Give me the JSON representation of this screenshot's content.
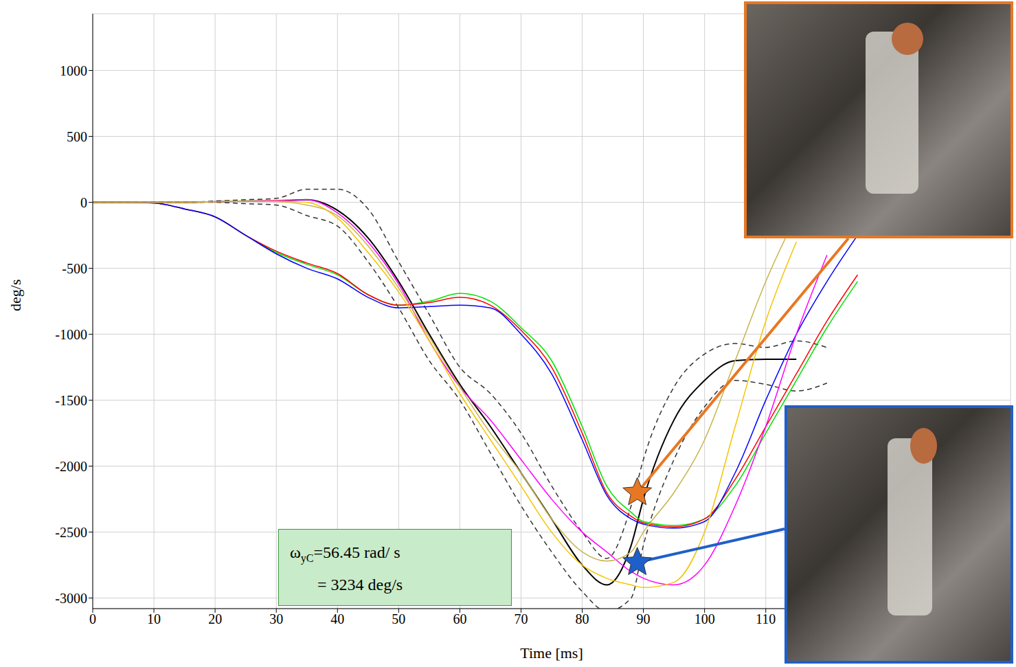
{
  "chart_data": {
    "type": "line",
    "x_label": "Time [ms]",
    "y_label": "deg/s",
    "grid": true,
    "xlim": [
      0,
      150
    ],
    "xticks": [
      0,
      10,
      20,
      30,
      40,
      50,
      60,
      70,
      80,
      90,
      100,
      110
    ],
    "ylim": [
      -3080,
      1430
    ],
    "yticks": [
      -3000,
      -2500,
      -2000,
      -1500,
      -1000,
      -500,
      0,
      500,
      1000
    ],
    "x": [
      0,
      5,
      10,
      15,
      20,
      25,
      30,
      35,
      40,
      45,
      50,
      55,
      60,
      65,
      70,
      75,
      80,
      84,
      88,
      90,
      95,
      100,
      105,
      110,
      115,
      120,
      125
    ],
    "series": [
      {
        "color": "#000000",
        "values": [
          0,
          0,
          0,
          0,
          5,
          10,
          10,
          20,
          -60,
          -270,
          -600,
          -1000,
          -1380,
          -1700,
          -2050,
          -2400,
          -2750,
          -2900,
          -2600,
          -2250,
          -1650,
          -1350,
          -1200,
          -1190,
          -1190,
          null,
          null
        ]
      },
      {
        "color": "#00e000",
        "values": [
          0,
          0,
          -5,
          -50,
          -110,
          -250,
          -380,
          -470,
          -550,
          -700,
          -780,
          -750,
          -690,
          -750,
          -950,
          -1200,
          -1700,
          -2150,
          -2350,
          -2420,
          -2450,
          -2400,
          -2150,
          -1750,
          -1350,
          -950,
          -600
        ]
      },
      {
        "color": "#ff0000",
        "values": [
          0,
          0,
          -5,
          -50,
          -110,
          -250,
          -370,
          -460,
          -540,
          -700,
          -780,
          -760,
          -720,
          -780,
          -970,
          -1250,
          -1750,
          -2200,
          -2380,
          -2430,
          -2460,
          -2400,
          -2100,
          -1700,
          -1300,
          -900,
          -550
        ]
      },
      {
        "color": "#0000ff",
        "values": [
          0,
          0,
          -5,
          -50,
          -110,
          -250,
          -390,
          -500,
          -580,
          -720,
          -800,
          -790,
          -780,
          -800,
          -1000,
          -1300,
          -1800,
          -2220,
          -2400,
          -2440,
          -2470,
          -2420,
          -2050,
          -1500,
          -1000,
          -600,
          -250
        ]
      },
      {
        "color": "#ff00ff",
        "values": [
          0,
          0,
          0,
          0,
          5,
          10,
          15,
          20,
          -80,
          -300,
          -620,
          -1050,
          -1400,
          -1650,
          -1950,
          -2250,
          -2500,
          -2650,
          -2800,
          -2850,
          -2900,
          -2750,
          -2300,
          -1700,
          -1000,
          -400,
          null
        ]
      },
      {
        "color": "#f5c400",
        "values": [
          0,
          0,
          0,
          0,
          5,
          10,
          10,
          0,
          -120,
          -380,
          -680,
          -1050,
          -1450,
          -1800,
          -2150,
          -2500,
          -2750,
          -2850,
          -2900,
          -2920,
          -2880,
          -2500,
          -1700,
          -900,
          -300,
          null,
          null
        ]
      },
      {
        "color": "#c8b44a",
        "values": [
          0,
          0,
          0,
          0,
          5,
          10,
          5,
          -20,
          -100,
          -330,
          -650,
          -1020,
          -1400,
          -1750,
          -2050,
          -2400,
          -2650,
          -2720,
          -2650,
          -2500,
          -2200,
          -1800,
          -1200,
          -600,
          -100,
          null,
          null
        ]
      }
    ],
    "corridor": {
      "color": "#dddddd",
      "line_style": "dashed",
      "upper": [
        0,
        0,
        0,
        0,
        10,
        20,
        30,
        100,
        100,
        -50,
        -450,
        -850,
        -1250,
        -1450,
        -1750,
        -2150,
        -2500,
        -2700,
        -2300,
        -1950,
        -1400,
        -1150,
        -1070,
        -1100,
        -1050,
        -1100,
        null
      ],
      "lower": [
        0,
        0,
        0,
        0,
        0,
        -10,
        -20,
        -100,
        -180,
        -450,
        -800,
        -1200,
        -1500,
        -1900,
        -2300,
        -2650,
        -2950,
        -3100,
        -3000,
        -2600,
        -1950,
        -1550,
        -1350,
        -1380,
        -1430,
        -1370,
        null
      ]
    },
    "markers": [
      {
        "x": 89,
        "y": -2200,
        "color": "#e87722"
      },
      {
        "x": 89,
        "y": -2730,
        "color": "#1f5fc9"
      }
    ],
    "annotation": {
      "symbol": "ω",
      "subscript": "yC",
      "text": "=56.45 rad/ s",
      "line2": "= 3234 deg/s"
    }
  }
}
